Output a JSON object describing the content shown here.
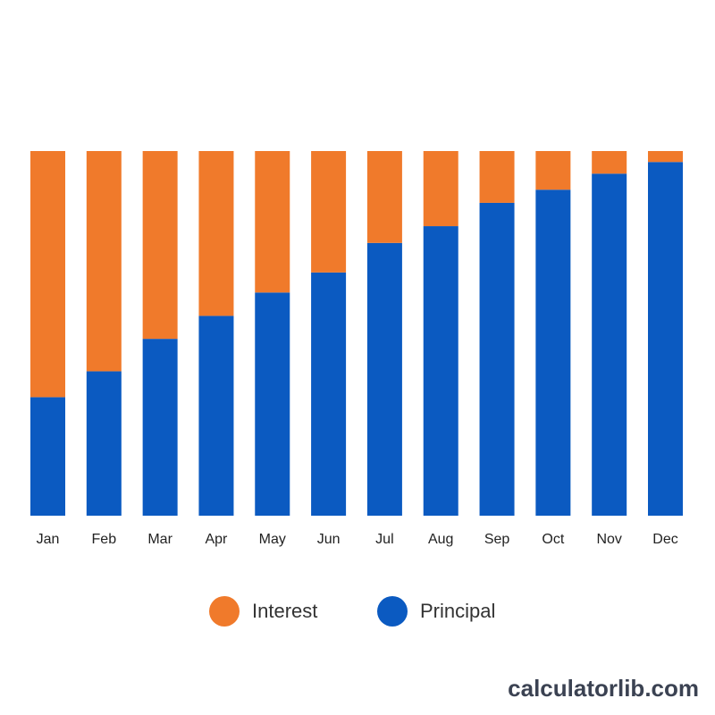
{
  "chart_data": {
    "type": "bar",
    "stacked": true,
    "categories": [
      "Jan",
      "Feb",
      "Mar",
      "Apr",
      "May",
      "Jun",
      "Jul",
      "Aug",
      "Sep",
      "Oct",
      "Nov",
      "Dec"
    ],
    "series": [
      {
        "name": "Principal",
        "color": "#0b5ac1",
        "values": [
          32.5,
          39.6,
          48.5,
          54.8,
          61.2,
          66.7,
          74.8,
          79.4,
          85.8,
          89.4,
          93.8,
          97.0
        ]
      },
      {
        "name": "Interest",
        "color": "#f07a2b",
        "values": [
          67.5,
          60.4,
          51.5,
          45.2,
          38.8,
          33.3,
          25.2,
          20.6,
          14.2,
          10.6,
          6.2,
          3.0
        ]
      }
    ],
    "ylim": [
      0,
      100
    ],
    "grid": false,
    "legend_position": "bottom"
  },
  "legend": {
    "interest_label": "Interest",
    "principal_label": "Principal"
  },
  "watermark": "calculatorlib.com"
}
